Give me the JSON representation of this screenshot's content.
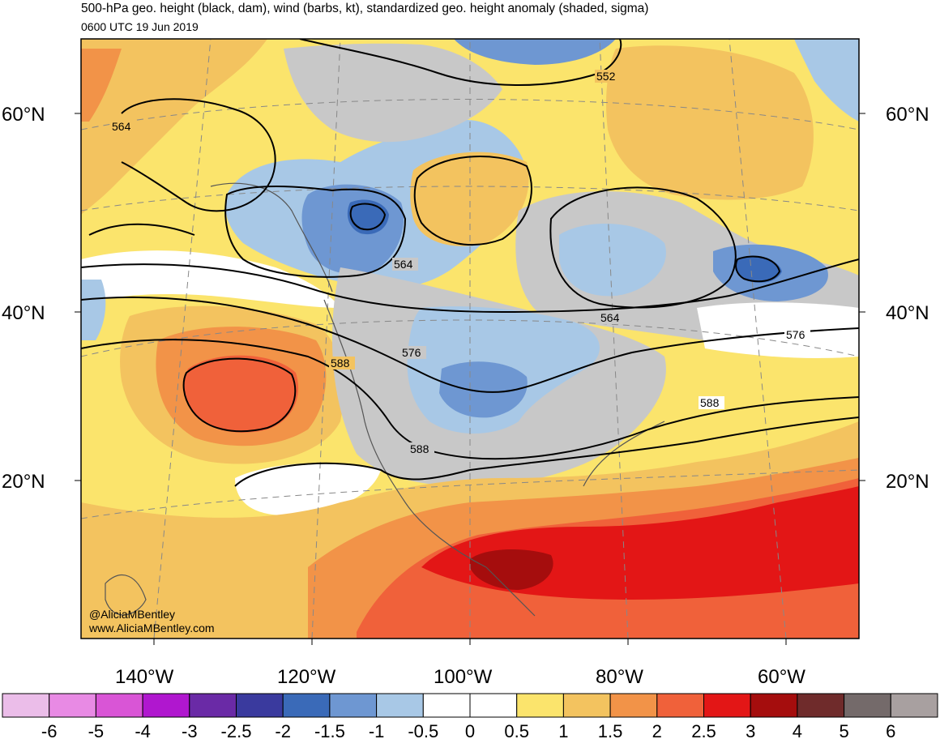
{
  "header": {
    "title": "500-hPa geo. height (black, dam), wind (barbs, kt), standardized geo. height anomaly (shaded, sigma)",
    "valid_time": "0600 UTC 19 Jun 2019"
  },
  "credit": {
    "handle": "@AliciaMBentley",
    "website": "www.AliciaMBentley.com"
  },
  "map": {
    "lat_labels": [
      "60°N",
      "40°N",
      "20°N"
    ],
    "lon_labels": [
      "140°W",
      "120°W",
      "100°W",
      "80°W",
      "60°W"
    ],
    "contour_labels": [
      "552",
      "564",
      "564",
      "564",
      "576",
      "576",
      "588",
      "588",
      "588"
    ]
  },
  "colorbar": {
    "labels": [
      "-6",
      "-5",
      "-4",
      "-3",
      "-2.5",
      "-2",
      "-1.5",
      "-1",
      "-0.5",
      "0",
      "0.5",
      "1",
      "1.5",
      "2",
      "2.5",
      "3",
      "4",
      "5",
      "6"
    ],
    "colors": [
      "#ebbde9",
      "#e88ae4",
      "#d955d6",
      "#b017cf",
      "#6a2aa6",
      "#3a3a9e",
      "#3a6ab8",
      "#6e97d2",
      "#a8c8e6",
      "#ffffff",
      "#ffffff",
      "#fbe46c",
      "#f3c35f",
      "#f29348",
      "#f0613a",
      "#e31616",
      "#a50d0d",
      "#6f2b2b",
      "#746a6a",
      "#a8a0a0"
    ]
  }
}
